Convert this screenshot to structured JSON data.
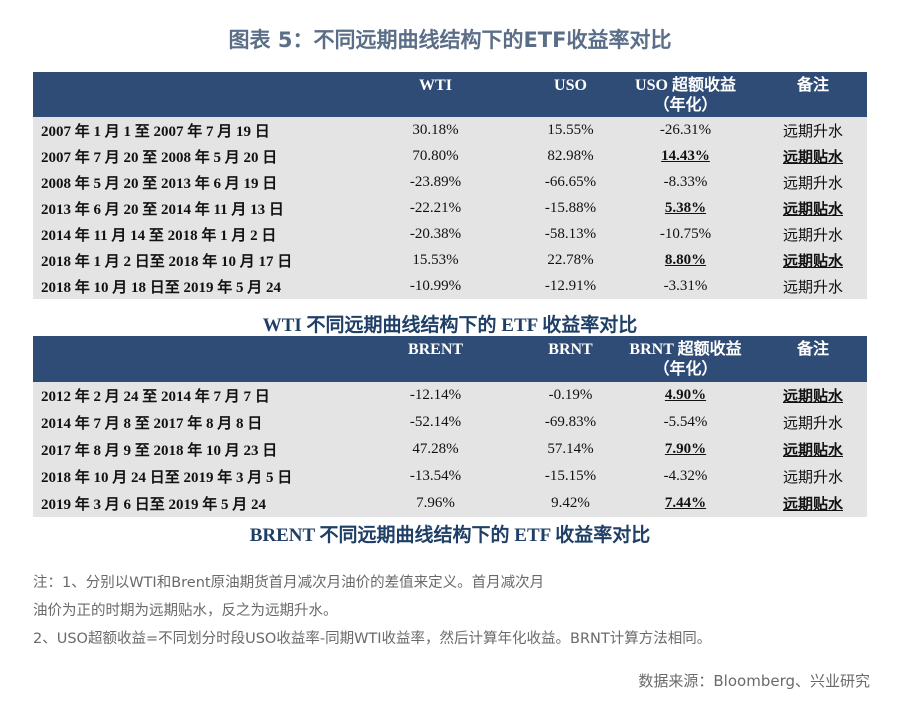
{
  "title": "图表 5：不同远期曲线结构下的ETF收益率对比",
  "wti_table": {
    "headers": [
      "",
      "WTI",
      "USO",
      "USO 超额收益",
      "（年化）",
      "备注"
    ],
    "rows": [
      [
        "2007 年 1 月 1 至 2007 年 7 月 19 日",
        "30.18%",
        "15.55%",
        "-26.31%",
        "远期升水",
        false
      ],
      [
        "2007 年 7 月 20 至 2008 年 5 月 20 日",
        "70.80%",
        "82.98%",
        "14.43%",
        "远期贴水",
        true
      ],
      [
        "2008 年 5 月 20 至 2013 年 6 月 19 日",
        "-23.89%",
        "-66.65%",
        "-8.33%",
        "远期升水",
        false
      ],
      [
        "2013 年 6 月 20 至 2014 年 11 月 13 日",
        "-22.21%",
        "-15.88%",
        "5.38%",
        "远期贴水",
        true
      ],
      [
        "2014 年 11 月 14 至 2018 年 1 月 2 日",
        "-20.38%",
        "-58.13%",
        "-10.75%",
        "远期升水",
        false
      ],
      [
        "2018 年 1 月 2 日至 2018 年 10 月 17 日",
        "15.53%",
        "22.78%",
        "8.80%",
        "远期贴水",
        true
      ],
      [
        "2018 年 10 月 18 日至 2019 年 5 月 24",
        "-10.99%",
        "-12.91%",
        "-3.31%",
        "远期升水",
        false
      ]
    ],
    "caption": "WTI 不同远期曲线结构下的 ETF 收益率对比"
  },
  "brent_table": {
    "headers": [
      "",
      "BRENT",
      "BRNT",
      "BRNT 超额收益",
      "（年化）",
      "备注"
    ],
    "rows": [
      [
        "2012 年 2 月 24 至 2014 年 7 月 7 日",
        "-12.14%",
        "-0.19%",
        "4.90%",
        "远期贴水",
        true
      ],
      [
        "2014 年 7 月 8 至 2017 年 8 月 8 日",
        "-52.14%",
        "-69.83%",
        "-5.54%",
        "远期升水",
        false
      ],
      [
        "2017 年 8 月 9 至 2018 年 10 月 23 日",
        "47.28%",
        "57.14%",
        "7.90%",
        "远期贴水",
        true
      ],
      [
        "2018 年 10 月 24 日至 2019 年 3 月 5 日",
        "-13.54%",
        "-15.15%",
        "-4.32%",
        "远期升水",
        false
      ],
      [
        "2019 年 3 月 6 日至 2019 年 5 月 24",
        "7.96%",
        "9.42%",
        "7.44%",
        "远期贴水",
        true
      ]
    ],
    "caption": "BRENT 不同远期曲线结构下的 ETF 收益率对比"
  },
  "notes": [
    "注：1、分别以WTI和Brent原油期货首月减次月油价的差值来定义。首月减次月",
    "油价为正的时期为远期贴水，反之为远期升水。",
    "2、USO超额收益=不同划分时段USO收益率-同期WTI收益率，然后计算年化收益。BRNT计算方法相同。"
  ],
  "source": "数据来源：Bloomberg、兴业研究",
  "colors": {
    "header": "#2e4c76",
    "body": "#e4e4e4",
    "caption": "#1f3f66"
  }
}
